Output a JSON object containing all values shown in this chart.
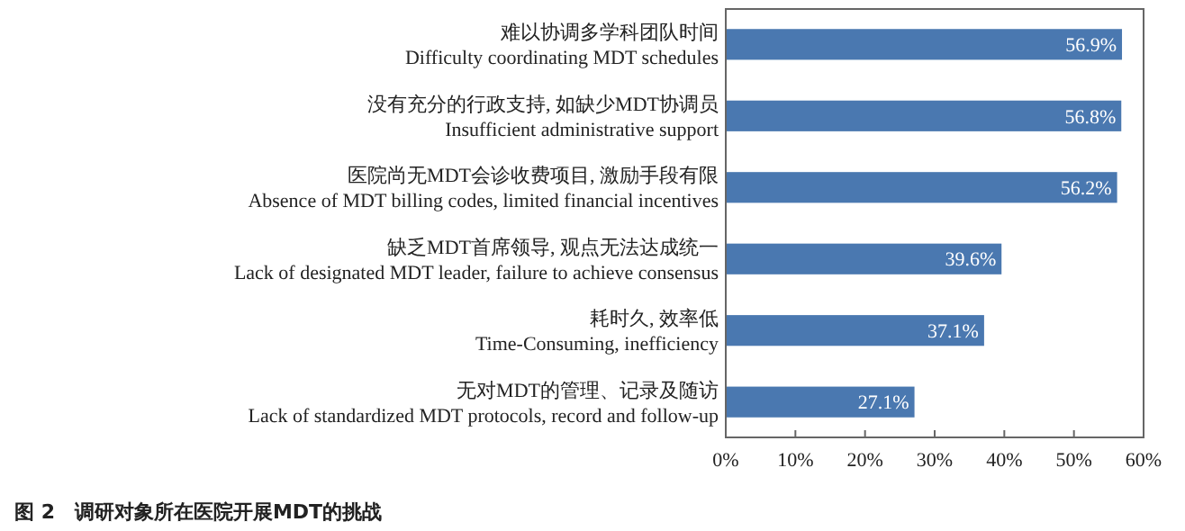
{
  "chart_data": {
    "type": "bar",
    "orientation": "horizontal",
    "title": "图 2　调研对象所在医院开展MDT的挑战",
    "categories": [
      "难以协调多学科团队时间\nDifficulty coordinating MDT schedules",
      "没有充分的行政支持, 如缺少MDT协调员\nInsufficient administrative support",
      "医院尚无MDT会诊收费项目, 激励手段有限\nAbsence of MDT billing codes, limited financial incentives",
      "缺乏MDT首席领导, 观点无法达成统一\nLack of designated MDT leader, failure to achieve consensus",
      "耗时久, 效率低\nTime-Consuming, inefficiency",
      "无对MDT的管理、记录及随访\nLack of standardized MDT protocols, record and follow-up"
    ],
    "values": [
      56.9,
      56.8,
      56.2,
      39.6,
      37.1,
      27.1
    ],
    "value_labels": [
      "56.9%",
      "56.8%",
      "56.2%",
      "39.6%",
      "37.1%",
      "27.1%"
    ],
    "color": "#4a78b0",
    "xlim": [
      0,
      60
    ],
    "xticks": [
      {
        "value": 0,
        "label": "0%"
      },
      {
        "value": 10,
        "label": "10%"
      },
      {
        "value": 20,
        "label": "20%"
      },
      {
        "value": 30,
        "label": "30%"
      },
      {
        "value": 40,
        "label": "40%"
      },
      {
        "value": 50,
        "label": "50%"
      },
      {
        "value": 60,
        "label": "60%"
      }
    ],
    "grid": false
  }
}
